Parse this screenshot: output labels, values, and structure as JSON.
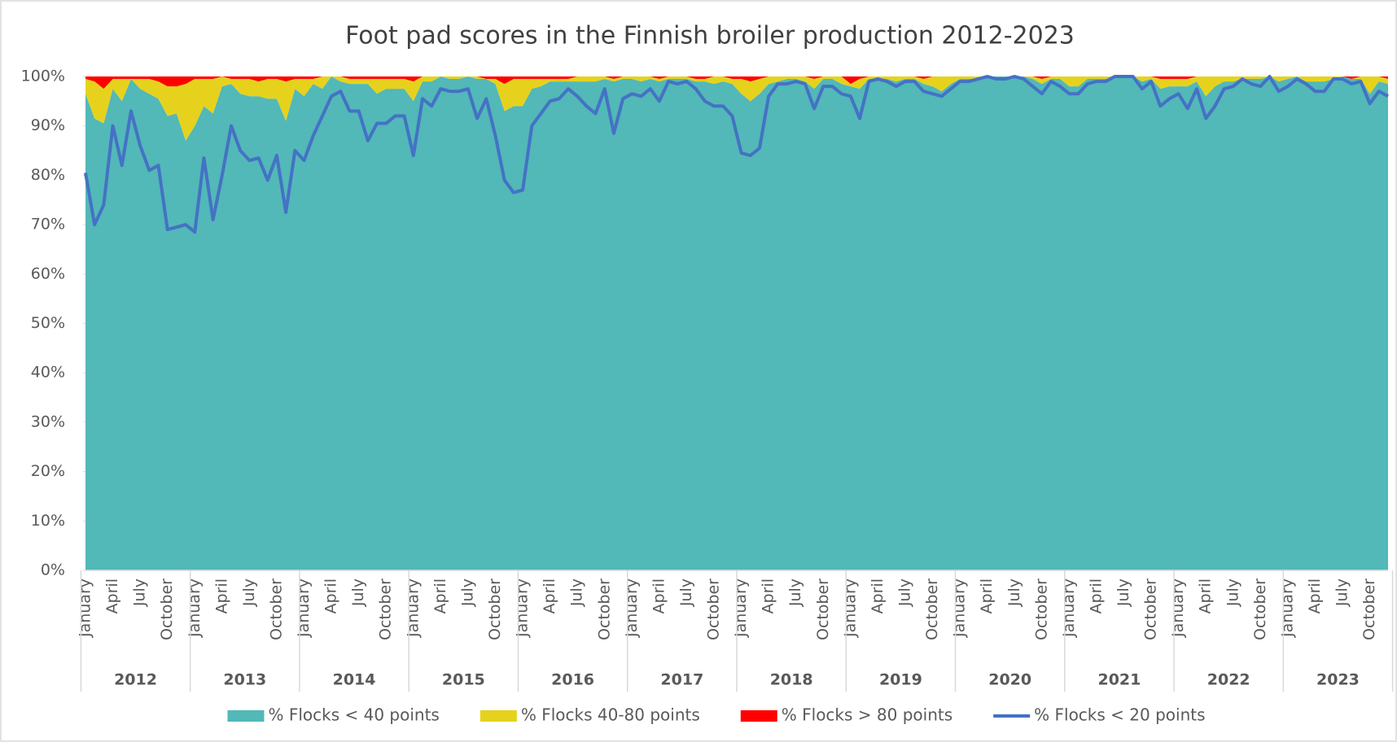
{
  "chart_data": {
    "type": "area",
    "stacked": true,
    "title": "Foot pad scores in the Finnish broiler production 2012-2023",
    "categories": [
      "January",
      null,
      null,
      "April",
      null,
      null,
      "July",
      null,
      null,
      "October",
      null,
      null,
      "January",
      null,
      null,
      "April",
      null,
      null,
      "July",
      null,
      null,
      "October",
      null,
      null,
      "January",
      null,
      null,
      "April",
      null,
      null,
      "July",
      null,
      null,
      "October",
      null,
      null,
      "January",
      null,
      null,
      "April",
      null,
      null,
      "July",
      null,
      null,
      "October",
      null,
      null,
      "January",
      null,
      null,
      "April",
      null,
      null,
      "July",
      null,
      null,
      "October",
      null,
      null,
      "January",
      null,
      null,
      "April",
      null,
      null,
      "July",
      null,
      null,
      "October",
      null,
      null,
      "January",
      null,
      null,
      "April",
      null,
      null,
      "July",
      null,
      null,
      "October",
      null,
      null,
      "January",
      null,
      null,
      "April",
      null,
      null,
      "July",
      null,
      null,
      "October",
      null,
      null,
      "January",
      null,
      null,
      "April",
      null,
      null,
      "July",
      null,
      null,
      "October",
      null,
      null,
      "January",
      null,
      null,
      "April",
      null,
      null,
      "July",
      null,
      null,
      "October",
      null,
      null,
      "January",
      null,
      null,
      "April",
      null,
      null,
      "July",
      null,
      null,
      "October",
      null,
      null,
      "January",
      null,
      null,
      "April",
      null,
      null,
      "July",
      null,
      null,
      "October",
      null,
      null
    ],
    "years": [
      "2012",
      "2013",
      "2014",
      "2015",
      "2016",
      "2017",
      "2018",
      "2019",
      "2020",
      "2021",
      "2022",
      "2023"
    ],
    "ylim": [
      0,
      100
    ],
    "yticks": [
      {
        "value": 0,
        "label": "0%"
      },
      {
        "value": 10,
        "label": "10%"
      },
      {
        "value": 20,
        "label": "20%"
      },
      {
        "value": 30,
        "label": "30%"
      },
      {
        "value": 40,
        "label": "40%"
      },
      {
        "value": 50,
        "label": "50%"
      },
      {
        "value": 60,
        "label": "60%"
      },
      {
        "value": 70,
        "label": "70%"
      },
      {
        "value": 80,
        "label": "80%"
      },
      {
        "value": 90,
        "label": "90%"
      },
      {
        "value": 100,
        "label": "100%"
      }
    ],
    "grid": false,
    "legend": "bottom",
    "series": [
      {
        "name": "% Flocks < 40 points",
        "type": "area",
        "color": "#52b8b8",
        "values": [
          96.5,
          91.5,
          90.5,
          97.5,
          95,
          99.5,
          97.5,
          96.5,
          95.5,
          92,
          92.5,
          87,
          90,
          94,
          92.5,
          98,
          98.5,
          96.5,
          96,
          96,
          95.5,
          95.5,
          91,
          97.5,
          96,
          98.5,
          97.5,
          100,
          99,
          98.5,
          98.5,
          98.5,
          96.5,
          97.5,
          97.5,
          97.5,
          95,
          99,
          99,
          100,
          99.5,
          99.5,
          100,
          99.5,
          99.5,
          98.5,
          93,
          94,
          94,
          97.5,
          98,
          99,
          99,
          99,
          99,
          99,
          99,
          99.5,
          99,
          99.5,
          99.5,
          99,
          99.5,
          99,
          99.5,
          99.5,
          99.5,
          99,
          99,
          98.5,
          99,
          98.5,
          96.5,
          95,
          96.5,
          98.5,
          99,
          99.5,
          99.5,
          99,
          97.5,
          99.5,
          99.5,
          98.5,
          98,
          97.5,
          99.5,
          99.5,
          99.5,
          99,
          99.5,
          99.5,
          98.5,
          98,
          97,
          98.5,
          99.5,
          99.5,
          99.5,
          100,
          100,
          100,
          100,
          100,
          99.5,
          98.5,
          99.5,
          99.5,
          98,
          98,
          99.5,
          99.5,
          99.5,
          100,
          100,
          100,
          99,
          99.5,
          97.5,
          98,
          98,
          98,
          99,
          96,
          98,
          99,
          99,
          99.5,
          99.5,
          99.5,
          100,
          99,
          99.5,
          100,
          99,
          99,
          99,
          99.5,
          100,
          99.5,
          99.5,
          96.5,
          99,
          98.5
        ]
      },
      {
        "name": "% Flocks 40-80 points",
        "type": "area",
        "color": "#e6d21c",
        "values": [
          3,
          7.5,
          7,
          2,
          4.5,
          0,
          2,
          3,
          3.5,
          6,
          5.5,
          11.5,
          9.5,
          5.5,
          7,
          2,
          1,
          3,
          3.5,
          3,
          4,
          4,
          8,
          2,
          3.5,
          1,
          2.5,
          0,
          1,
          1,
          1,
          1,
          3,
          2,
          2,
          2,
          4,
          1,
          1,
          0,
          0.5,
          0.5,
          0,
          0.5,
          0,
          1,
          5.5,
          5.5,
          5.5,
          2,
          1.5,
          0.5,
          0.5,
          0.5,
          1,
          1,
          1,
          0.5,
          0.5,
          0.5,
          0.5,
          1,
          0.5,
          0.5,
          0.5,
          0.5,
          0.5,
          0.5,
          0.5,
          1.5,
          1,
          1,
          3,
          4,
          3,
          1.5,
          1,
          0.5,
          0.5,
          1,
          2,
          0.5,
          0.5,
          1.5,
          0.5,
          2,
          0.5,
          0.5,
          0.5,
          1,
          0.5,
          0.5,
          1,
          2,
          3,
          1.5,
          0.5,
          0.5,
          0.5,
          0,
          0,
          0,
          0,
          0,
          0.5,
          1,
          0.5,
          0.5,
          2,
          2,
          0.5,
          0.5,
          0.5,
          0,
          0,
          0,
          1,
          0.5,
          2,
          1.5,
          1.5,
          1.5,
          1,
          4,
          2,
          1,
          1,
          0.5,
          0.5,
          0.5,
          0,
          1,
          0.5,
          0,
          1,
          1,
          1,
          0.5,
          0,
          0,
          0.5,
          3.5,
          1,
          1
        ]
      },
      {
        "name": "% Flocks > 80 points",
        "type": "area",
        "color": "#ff0000",
        "values": [
          0.5,
          1,
          2.5,
          0.5,
          0.5,
          0.5,
          0.5,
          0.5,
          1,
          2,
          2,
          1.5,
          0.5,
          0.5,
          0.5,
          0,
          0.5,
          0.5,
          0.5,
          1,
          0.5,
          0.5,
          1,
          0.5,
          0.5,
          0.5,
          0,
          0,
          0,
          0.5,
          0.5,
          0.5,
          0.5,
          0.5,
          0.5,
          0.5,
          1,
          0,
          0,
          0,
          0,
          0,
          0,
          0,
          0.5,
          0.5,
          1.5,
          0.5,
          0.5,
          0.5,
          0.5,
          0.5,
          0.5,
          0.5,
          0,
          0,
          0,
          0,
          0.5,
          0,
          0,
          0,
          0,
          0.5,
          0,
          0,
          0,
          0.5,
          0.5,
          0,
          0,
          0.5,
          0.5,
          1,
          0.5,
          0,
          0,
          0,
          0,
          0,
          0.5,
          0,
          0,
          0,
          1.5,
          0.5,
          0,
          0,
          0,
          0,
          0,
          0,
          0.5,
          0,
          0,
          0,
          0,
          0,
          0,
          0,
          0,
          0,
          0,
          0,
          0,
          0.5,
          0,
          0,
          0,
          0,
          0,
          0,
          0,
          0,
          0,
          0,
          0,
          0,
          0.5,
          0.5,
          0.5,
          0.5,
          0,
          0,
          0,
          0,
          0,
          0,
          0,
          0,
          0,
          0,
          0,
          0,
          0,
          0,
          0,
          0,
          0,
          0.5,
          0,
          0,
          0,
          0.5
        ]
      },
      {
        "name": "% Flocks < 20 points",
        "type": "line",
        "color": "#4472c4",
        "values": [
          80.5,
          70,
          74,
          90,
          82,
          93,
          86,
          81,
          82,
          69,
          69.5,
          70,
          68.5,
          83.5,
          71,
          80,
          90,
          85,
          83,
          83.5,
          79,
          84,
          72.5,
          85,
          83,
          88,
          92,
          96,
          97,
          93,
          93,
          87,
          90.5,
          90.5,
          92,
          92,
          84,
          95.5,
          94,
          97.5,
          97,
          97,
          97.5,
          91.5,
          95.5,
          88,
          79,
          76.5,
          77,
          90,
          92.5,
          95,
          95.5,
          97.5,
          96,
          94,
          92.5,
          97.5,
          88.5,
          95.5,
          96.5,
          96,
          97.5,
          95,
          99,
          98.5,
          99,
          97.5,
          95,
          94,
          94,
          92,
          84.5,
          84,
          85.5,
          96,
          98.5,
          98.5,
          99,
          98.5,
          93.5,
          98,
          98,
          96.5,
          96,
          91.5,
          99,
          99.5,
          99,
          98,
          99,
          99,
          97,
          96.5,
          96,
          97.5,
          99,
          99,
          99.5,
          100,
          99.5,
          99.5,
          100,
          99.5,
          98,
          96.5,
          99,
          98,
          96.5,
          96.5,
          98.5,
          99,
          99,
          100,
          100,
          100,
          97.5,
          99,
          94,
          95.5,
          96.5,
          93.5,
          97.5,
          91.5,
          94,
          97.5,
          98,
          99.5,
          98.5,
          98,
          100,
          97,
          98,
          99.5,
          98.5,
          97,
          97,
          99.5,
          99.5,
          98.5,
          99,
          94.5,
          97,
          96
        ]
      }
    ]
  }
}
